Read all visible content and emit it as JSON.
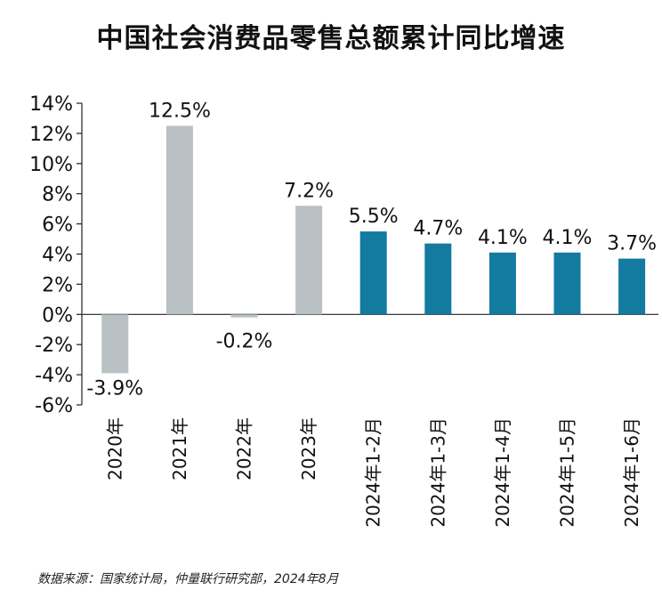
{
  "chart_data": {
    "type": "bar",
    "title": "中国社会消费品零售总额累计同比增速",
    "categories": [
      "2020年",
      "2021年",
      "2022年",
      "2023年",
      "2024年1-2月",
      "2024年1-3月",
      "2024年1-4月",
      "2024年1-5月",
      "2024年1-6月"
    ],
    "values": [
      -3.9,
      12.5,
      -0.2,
      7.2,
      5.5,
      4.7,
      4.1,
      4.1,
      3.7
    ],
    "data_labels": [
      "-3.9%",
      "12.5%",
      "-0.2%",
      "7.2%",
      "5.5%",
      "4.7%",
      "4.1%",
      "4.1%",
      "3.7%"
    ],
    "bar_colors": [
      "#b9c1c4",
      "#b9c1c4",
      "#b9c1c4",
      "#b9c1c4",
      "#137aa0",
      "#137aa0",
      "#137aa0",
      "#137aa0",
      "#137aa0"
    ],
    "yticks": [
      "14%",
      "12%",
      "10%",
      "8%",
      "6%",
      "4%",
      "2%",
      "0%",
      "-2%",
      "-4%",
      "-6%"
    ],
    "ylim": [
      -6,
      14
    ],
    "xlabel": "",
    "ylabel": "",
    "grid": false,
    "legend": "none"
  },
  "source": "数据来源：国家统计局，仲量联行研究部，2024年8月"
}
